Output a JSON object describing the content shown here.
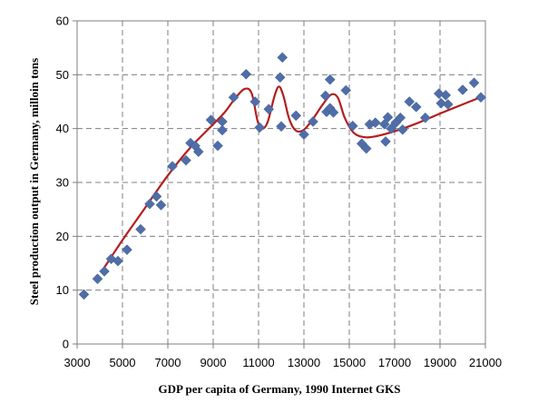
{
  "chart_data": {
    "type": "scatter",
    "xlabel": "GDP per capita of Germany, 1990 Internet GKS",
    "ylabel": "Steel production output in Germany, milloin tons",
    "xlim": [
      3000,
      21000
    ],
    "ylim": [
      0,
      60
    ],
    "x_ticks": [
      3000,
      5000,
      7000,
      9000,
      11000,
      13000,
      15000,
      17000,
      19000,
      21000
    ],
    "y_ticks": [
      0,
      10,
      20,
      30,
      40,
      50,
      60
    ],
    "x_tick_labels": [
      "3000",
      "5000",
      "7000",
      "9000",
      "11000",
      "13000",
      "15000",
      "17000",
      "19000",
      "21000"
    ],
    "y_tick_labels": [
      "0",
      "10",
      "20",
      "30",
      "40",
      "50",
      "60"
    ],
    "grid": "vertical and horizontal dashed",
    "marker_color": "#4f6ea8",
    "trend_color": "#b41e1e",
    "series": [
      {
        "marker": "diamond",
        "points": [
          [
            3300,
            9.2
          ],
          [
            3900,
            12.1
          ],
          [
            4200,
            13.5
          ],
          [
            4500,
            15.8
          ],
          [
            4800,
            15.4
          ],
          [
            5200,
            17.5
          ],
          [
            5800,
            21.3
          ],
          [
            6200,
            26.0
          ],
          [
            6500,
            27.4
          ],
          [
            6700,
            25.8
          ],
          [
            7200,
            33.0
          ],
          [
            7800,
            34.1
          ],
          [
            8000,
            37.3
          ],
          [
            8200,
            36.8
          ],
          [
            8350,
            35.7
          ],
          [
            8900,
            41.6
          ],
          [
            9200,
            36.8
          ],
          [
            9400,
            41.3
          ],
          [
            9400,
            39.7
          ],
          [
            9900,
            45.8
          ],
          [
            10450,
            50.1
          ],
          [
            10850,
            45.0
          ],
          [
            11050,
            40.2
          ],
          [
            11450,
            43.6
          ],
          [
            11950,
            49.5
          ],
          [
            12000,
            40.4
          ],
          [
            12050,
            53.2
          ],
          [
            12650,
            42.4
          ],
          [
            13000,
            38.9
          ],
          [
            13400,
            41.3
          ],
          [
            13950,
            46.1
          ],
          [
            14000,
            43.1
          ],
          [
            14150,
            49.1
          ],
          [
            14150,
            43.8
          ],
          [
            14300,
            43.0
          ],
          [
            14850,
            47.1
          ],
          [
            15150,
            40.5
          ],
          [
            15550,
            37.2
          ],
          [
            15750,
            36.3
          ],
          [
            15900,
            40.8
          ],
          [
            16150,
            41.1
          ],
          [
            16550,
            40.8
          ],
          [
            16600,
            37.6
          ],
          [
            16700,
            42.1
          ],
          [
            16850,
            40.0
          ],
          [
            17050,
            41.1
          ],
          [
            17250,
            42.0
          ],
          [
            17350,
            39.8
          ],
          [
            17650,
            45.0
          ],
          [
            17950,
            44.0
          ],
          [
            18350,
            42.0
          ],
          [
            18950,
            46.5
          ],
          [
            19050,
            44.7
          ],
          [
            19250,
            46.2
          ],
          [
            19350,
            44.5
          ],
          [
            20000,
            47.2
          ],
          [
            20500,
            48.5
          ],
          [
            20800,
            45.8
          ]
        ]
      }
    ],
    "trend_line": [
      [
        4200,
        14.2
      ],
      [
        5000,
        19.3
      ],
      [
        6000,
        25.3
      ],
      [
        7000,
        31.3
      ],
      [
        8000,
        36.5
      ],
      [
        9000,
        40.8
      ],
      [
        9500,
        43.0
      ],
      [
        10000,
        45.8
      ],
      [
        10400,
        47.4
      ],
      [
        10700,
        46.5
      ],
      [
        10950,
        41.5
      ],
      [
        11150,
        40.0
      ],
      [
        11400,
        41.2
      ],
      [
        11700,
        46.0
      ],
      [
        11900,
        47.8
      ],
      [
        12100,
        46.0
      ],
      [
        12350,
        41.8
      ],
      [
        12650,
        39.6
      ],
      [
        13000,
        39.8
      ],
      [
        13400,
        41.8
      ],
      [
        13800,
        44.3
      ],
      [
        14200,
        46.3
      ],
      [
        14500,
        45.7
      ],
      [
        14800,
        42.0
      ],
      [
        15200,
        39.2
      ],
      [
        15700,
        38.4
      ],
      [
        16200,
        38.6
      ],
      [
        17000,
        39.5
      ],
      [
        18000,
        41.0
      ],
      [
        19000,
        42.8
      ],
      [
        20000,
        44.5
      ],
      [
        20900,
        46.0
      ]
    ]
  }
}
